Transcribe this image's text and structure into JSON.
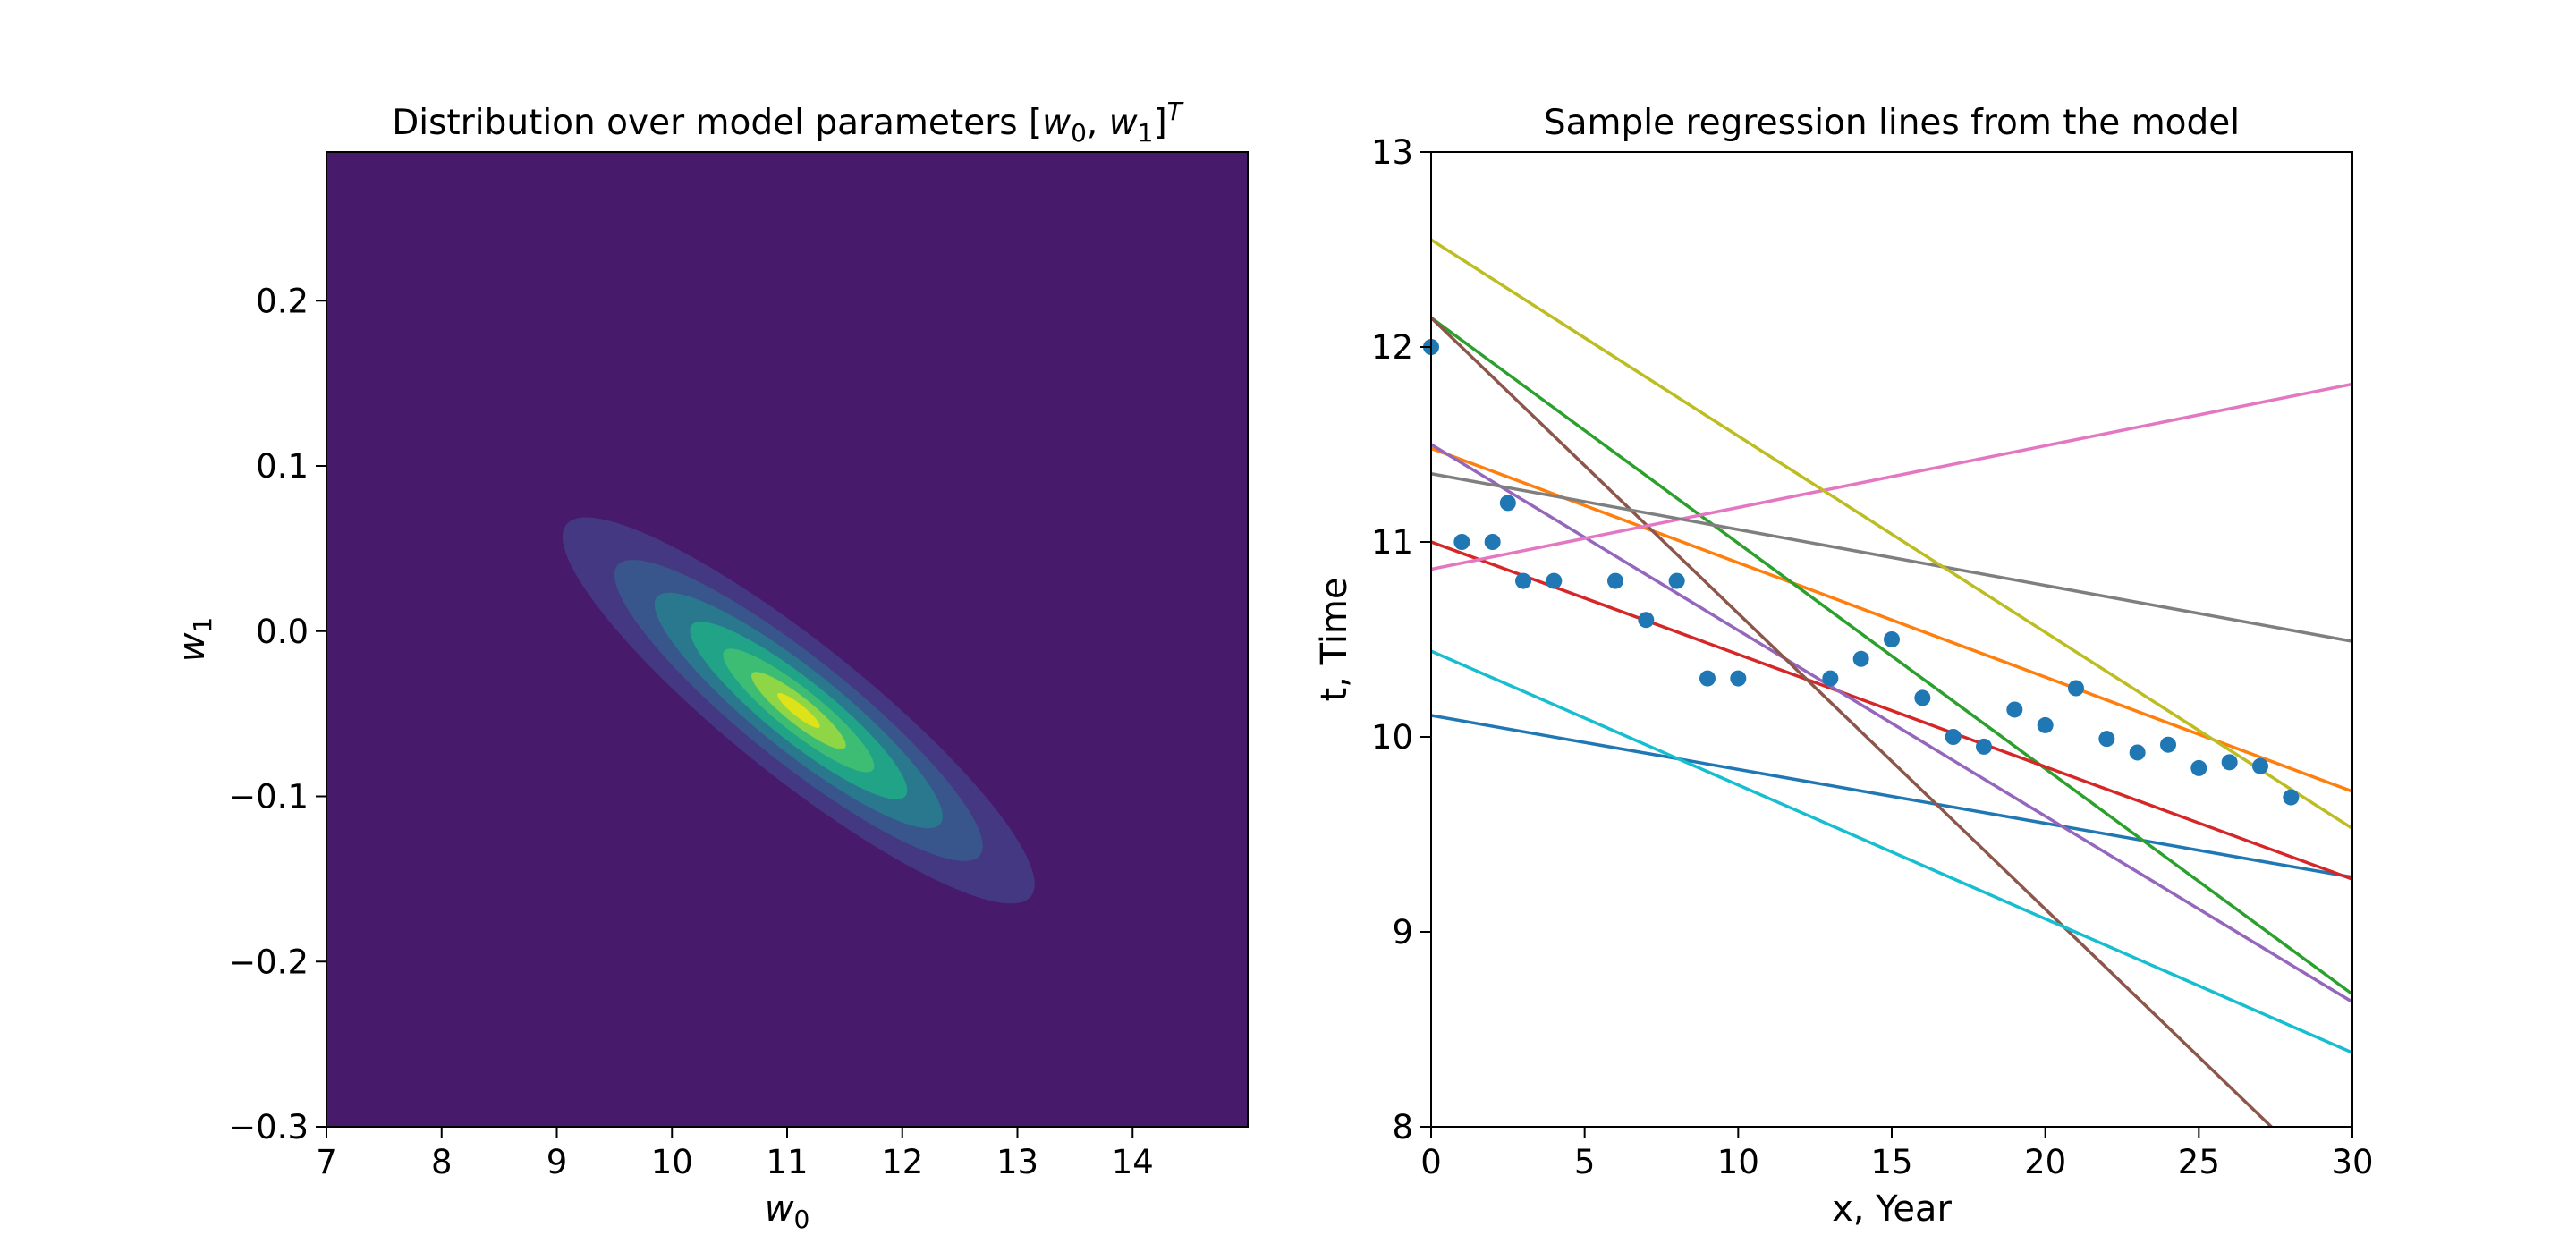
{
  "chart_data": [
    {
      "type": "contour",
      "title_prefix": "Distribution over model parameters [",
      "title_math": "w",
      "title_sub0": "0",
      "title_sep": ", ",
      "title_sub1": "1",
      "title_close": "]",
      "title_sup": "T",
      "xlabel_math": "w",
      "xlabel_sub": "0",
      "ylabel_math": "w",
      "ylabel_sub": "1",
      "xlim": [
        7,
        15
      ],
      "ylim": [
        -0.3,
        0.29
      ],
      "xticks": [
        7,
        8,
        9,
        10,
        11,
        12,
        13,
        14
      ],
      "yticks": [
        -0.3,
        -0.2,
        -0.1,
        0.0,
        0.1,
        0.2
      ],
      "ytick_labels": [
        "−0.3",
        "−0.2",
        "−0.1",
        "0.0",
        "0.1",
        "0.2"
      ],
      "xtick_labels": [
        "7",
        "8",
        "9",
        "10",
        "11",
        "12",
        "13",
        "14"
      ],
      "center": [
        11.1,
        -0.048
      ],
      "cov_hint": {
        "sd_w0": 1.0,
        "sd_w1": 0.057,
        "corr": -0.9
      },
      "levels": [
        {
          "level": 1,
          "color": "#453882",
          "scale": 1.0
        },
        {
          "level": 2,
          "color": "#39568c",
          "scale": 0.78
        },
        {
          "level": 3,
          "color": "#2a788e",
          "scale": 0.61
        },
        {
          "level": 4,
          "color": "#20a386",
          "scale": 0.46
        },
        {
          "level": 5,
          "color": "#3dbc74",
          "scale": 0.32
        },
        {
          "level": 6,
          "color": "#8ed645",
          "scale": 0.2
        },
        {
          "level": 7,
          "color": "#dde318",
          "scale": 0.09
        }
      ],
      "background_color": "#481a6c"
    },
    {
      "type": "scatter+line",
      "title": "Sample regression lines from the model",
      "xlabel": "x, Year",
      "ylabel": "t, Time",
      "xlim": [
        0,
        30
      ],
      "ylim": [
        8,
        13
      ],
      "xticks": [
        0,
        5,
        10,
        15,
        20,
        25,
        30
      ],
      "yticks": [
        8,
        9,
        10,
        11,
        12,
        13
      ],
      "xtick_labels": [
        "0",
        "5",
        "10",
        "15",
        "20",
        "25",
        "30"
      ],
      "ytick_labels": [
        "8",
        "9",
        "10",
        "11",
        "12",
        "13"
      ],
      "points": {
        "color": "#1f77b4",
        "x": [
          0,
          1,
          2,
          2.5,
          3,
          4,
          6,
          7,
          8,
          9,
          10,
          13,
          14,
          15,
          16,
          17,
          18,
          19,
          20,
          21,
          22,
          23,
          24,
          25,
          26,
          27,
          28
        ],
        "y": [
          12.0,
          11.0,
          11.0,
          11.2,
          10.8,
          10.8,
          10.8,
          10.6,
          10.8,
          10.3,
          10.3,
          10.3,
          10.4,
          10.5,
          10.2,
          10.0,
          9.95,
          10.14,
          10.06,
          10.25,
          9.99,
          9.92,
          9.96,
          9.84,
          9.87,
          9.85,
          9.69
        ]
      },
      "lines": [
        {
          "color": "#1f77b4",
          "y0": 10.11,
          "y30": 9.28
        },
        {
          "color": "#ff7f0e",
          "y0": 11.48,
          "y30": 9.72
        },
        {
          "color": "#2ca02c",
          "y0": 12.15,
          "y30": 8.68
        },
        {
          "color": "#d62728",
          "y0": 11.0,
          "y30": 9.27
        },
        {
          "color": "#9467bd",
          "y0": 11.5,
          "y30": 8.64
        },
        {
          "color": "#8c564b",
          "y0": 12.15,
          "y30": 7.6
        },
        {
          "color": "#e377c2",
          "y0": 10.86,
          "y30": 11.81
        },
        {
          "color": "#7f7f7f",
          "y0": 11.35,
          "y30": 10.49
        },
        {
          "color": "#bcbd22",
          "y0": 12.55,
          "y30": 9.53
        },
        {
          "color": "#17becf",
          "y0": 10.44,
          "y30": 8.38
        }
      ]
    }
  ]
}
